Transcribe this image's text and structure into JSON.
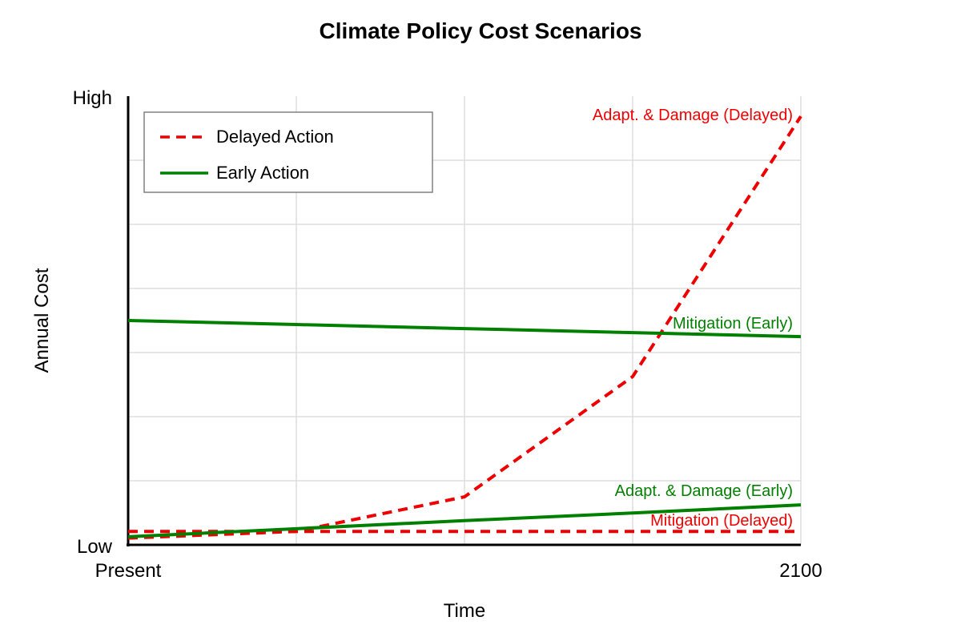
{
  "chart_data": {
    "type": "line",
    "title": "Climate Policy Cost Scenarios",
    "xlabel": "Time",
    "ylabel": "Annual Cost",
    "x_tick_labels": {
      "start": "Present",
      "end": "2100"
    },
    "y_tick_labels": {
      "low": "Low",
      "high": "High"
    },
    "x": [
      0,
      0.25,
      0.5,
      0.75,
      1.0
    ],
    "xlim": [
      0,
      1
    ],
    "ylim": [
      0,
      1
    ],
    "grid": true,
    "legend": {
      "position": "top-left",
      "entries": [
        {
          "label": "Delayed Action",
          "color": "#ee0000",
          "style": "dashed"
        },
        {
          "label": "Early Action",
          "color": "#008000",
          "style": "solid"
        }
      ]
    },
    "series": [
      {
        "name": "Adapt. & Damage (Delayed)",
        "group": "Delayed Action",
        "color": "#ee0000",
        "style": "dashed",
        "values": [
          0.015,
          0.03,
          0.107,
          0.375,
          0.955
        ]
      },
      {
        "name": "Mitigation (Delayed)",
        "group": "Delayed Action",
        "color": "#ee0000",
        "style": "dashed",
        "values": [
          0.03,
          0.03,
          0.03,
          0.03,
          0.03
        ]
      },
      {
        "name": "Mitigation (Early)",
        "group": "Early Action",
        "color": "#008000",
        "style": "solid",
        "values": [
          0.5,
          0.491,
          0.482,
          0.473,
          0.464
        ]
      },
      {
        "name": "Adapt. & Damage (Early)",
        "group": "Early Action",
        "color": "#008000",
        "style": "solid",
        "values": [
          0.018,
          0.036,
          0.054,
          0.071,
          0.089
        ]
      }
    ]
  }
}
